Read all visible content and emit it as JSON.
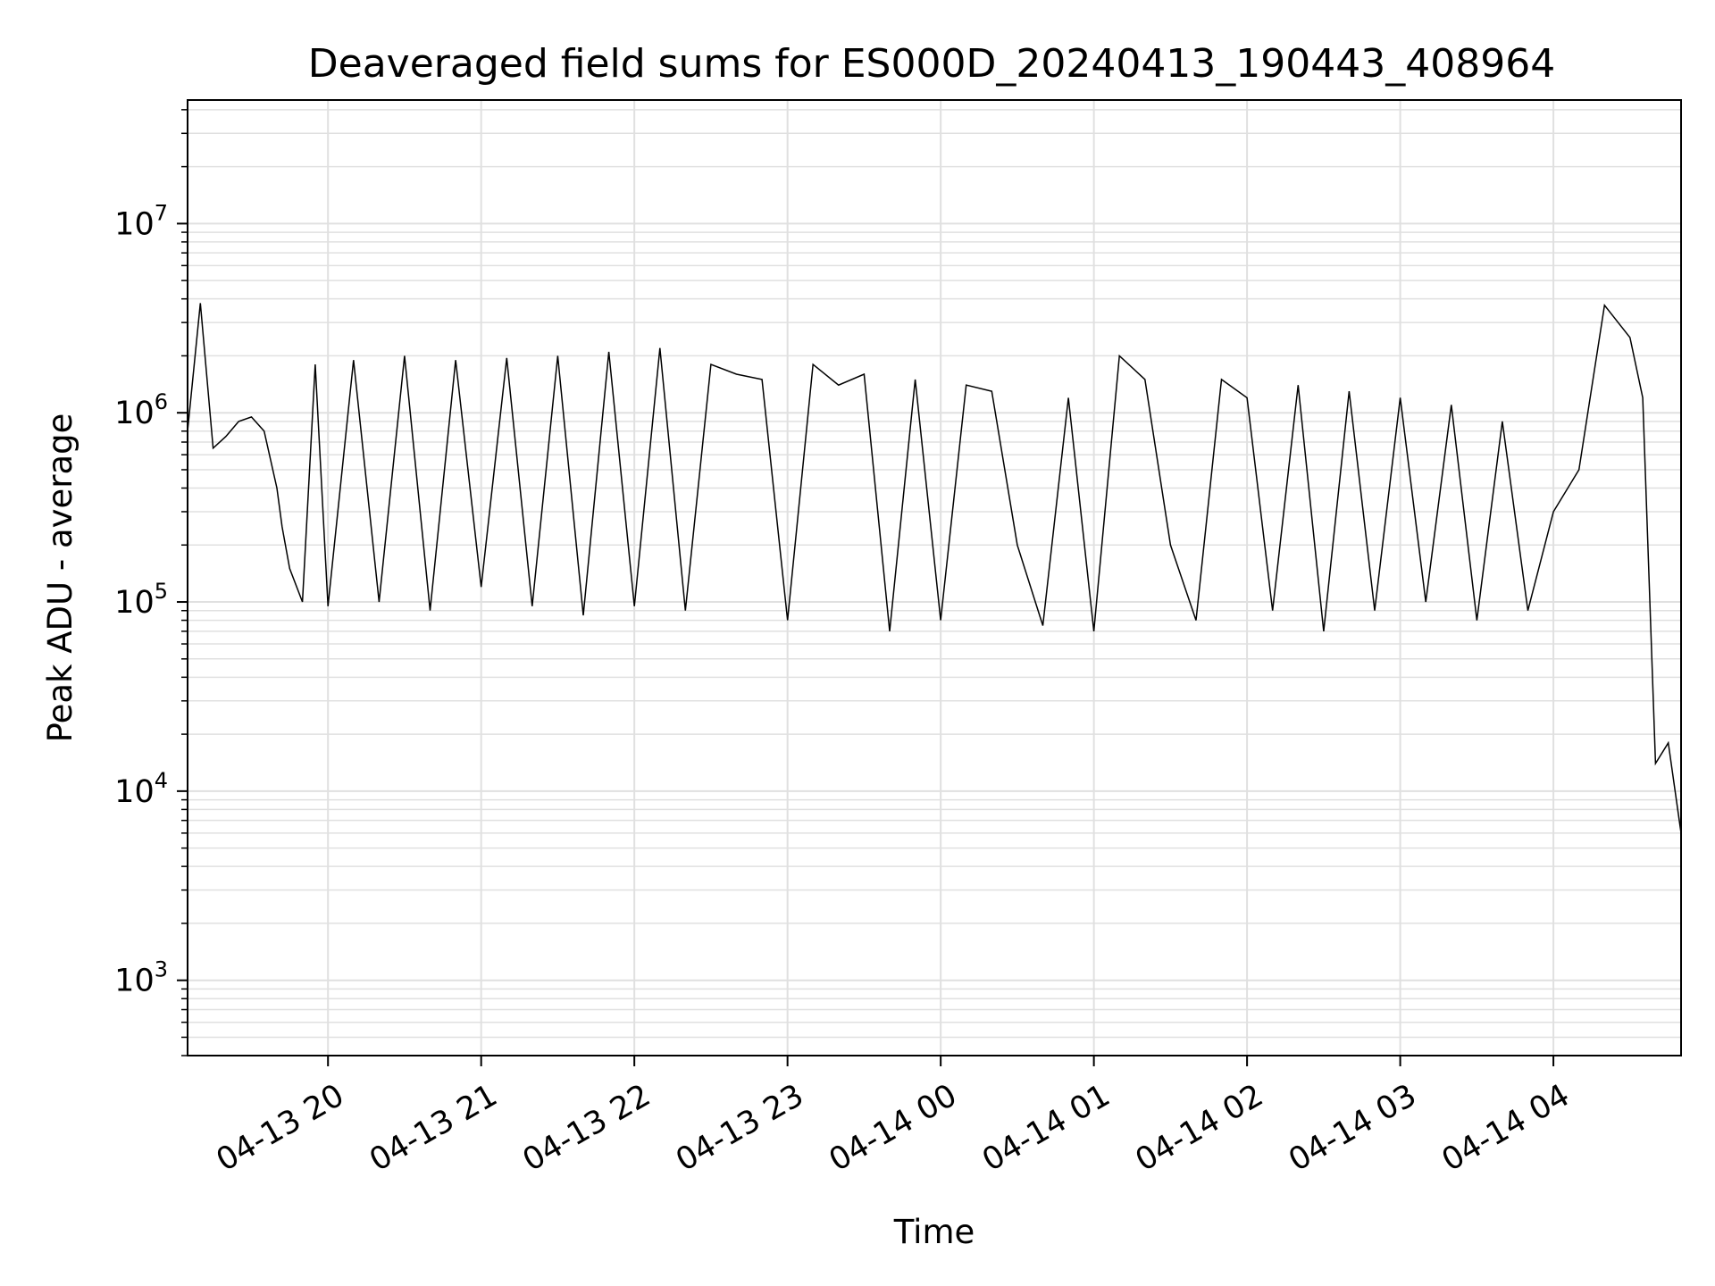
{
  "chart_data": {
    "type": "line",
    "title": "Deaveraged field sums for ES000D_20240413_190443_408964",
    "xlabel": "Time",
    "ylabel": "Peak ADU - average",
    "x_range": [
      "2024-04-13 19:05",
      "2024-04-14 04:50"
    ],
    "yscale": "log",
    "ylim": [
      400,
      45000000
    ],
    "grid": true,
    "legend": "none",
    "colors": {
      "line": "#000000",
      "grid": "#e0e0e0"
    },
    "x_ticks": [
      {
        "label": "04-13 20",
        "time": "2024-04-13 20:00"
      },
      {
        "label": "04-13 21",
        "time": "2024-04-13 21:00"
      },
      {
        "label": "04-13 22",
        "time": "2024-04-13 22:00"
      },
      {
        "label": "04-13 23",
        "time": "2024-04-13 23:00"
      },
      {
        "label": "04-14 00",
        "time": "2024-04-14 00:00"
      },
      {
        "label": "04-14 01",
        "time": "2024-04-14 01:00"
      },
      {
        "label": "04-14 02",
        "time": "2024-04-14 02:00"
      },
      {
        "label": "04-14 03",
        "time": "2024-04-14 03:00"
      },
      {
        "label": "04-14 04",
        "time": "2024-04-14 04:00"
      }
    ],
    "y_ticks": [
      {
        "base": "10",
        "exp": "3",
        "value": 1000
      },
      {
        "base": "10",
        "exp": "4",
        "value": 10000
      },
      {
        "base": "10",
        "exp": "5",
        "value": 100000
      },
      {
        "base": "10",
        "exp": "6",
        "value": 1000000
      },
      {
        "base": "10",
        "exp": "7",
        "value": 10000000
      }
    ],
    "series": [
      {
        "x": [
          "2024-04-13 19:05",
          "2024-04-13 19:10",
          "2024-04-13 19:15",
          "2024-04-13 19:20",
          "2024-04-13 19:25",
          "2024-04-13 19:30",
          "2024-04-13 19:35",
          "2024-04-13 19:40",
          "2024-04-13 19:42",
          "2024-04-13 19:45",
          "2024-04-13 19:50",
          "2024-04-13 19:55",
          "2024-04-13 20:00",
          "2024-04-13 20:10",
          "2024-04-13 20:20",
          "2024-04-13 20:30",
          "2024-04-13 20:40",
          "2024-04-13 20:50",
          "2024-04-13 21:00",
          "2024-04-13 21:10",
          "2024-04-13 21:20",
          "2024-04-13 21:30",
          "2024-04-13 21:40",
          "2024-04-13 21:50",
          "2024-04-13 22:00",
          "2024-04-13 22:10",
          "2024-04-13 22:20",
          "2024-04-13 22:30",
          "2024-04-13 22:40",
          "2024-04-13 22:50",
          "2024-04-13 23:00",
          "2024-04-13 23:10",
          "2024-04-13 23:20",
          "2024-04-13 23:30",
          "2024-04-13 23:40",
          "2024-04-13 23:50",
          "2024-04-14 00:00",
          "2024-04-14 00:10",
          "2024-04-14 00:20",
          "2024-04-14 00:30",
          "2024-04-14 00:40",
          "2024-04-14 00:50",
          "2024-04-14 01:00",
          "2024-04-14 01:10",
          "2024-04-14 01:20",
          "2024-04-14 01:30",
          "2024-04-14 01:40",
          "2024-04-14 01:50",
          "2024-04-14 02:00",
          "2024-04-14 02:10",
          "2024-04-14 02:20",
          "2024-04-14 02:30",
          "2024-04-14 02:40",
          "2024-04-14 02:50",
          "2024-04-14 03:00",
          "2024-04-14 03:10",
          "2024-04-14 03:20",
          "2024-04-14 03:30",
          "2024-04-14 03:40",
          "2024-04-14 03:50",
          "2024-04-14 04:00",
          "2024-04-14 04:10",
          "2024-04-14 04:20",
          "2024-04-14 04:30",
          "2024-04-14 04:35",
          "2024-04-14 04:40",
          "2024-04-14 04:45",
          "2024-04-14 04:50"
        ],
        "y": [
          800000,
          3800000,
          650000,
          750000,
          900000,
          950000,
          800000,
          400000,
          250000,
          150000,
          100000,
          1800000,
          95000,
          1900000,
          100000,
          2000000,
          90000,
          1900000,
          120000,
          1950000,
          95000,
          2000000,
          85000,
          2100000,
          95000,
          2200000,
          90000,
          1800000,
          1600000,
          1500000,
          80000,
          1800000,
          1400000,
          1600000,
          70000,
          1500000,
          80000,
          1400000,
          1300000,
          200000,
          75000,
          1200000,
          70000,
          2000000,
          1500000,
          200000,
          80000,
          1500000,
          1200000,
          90000,
          1400000,
          70000,
          1300000,
          90000,
          1200000,
          100000,
          1100000,
          80000,
          900000,
          90000,
          300000,
          500000,
          3700000,
          2500000,
          1200000,
          14000,
          18000,
          6000
        ]
      }
    ]
  }
}
